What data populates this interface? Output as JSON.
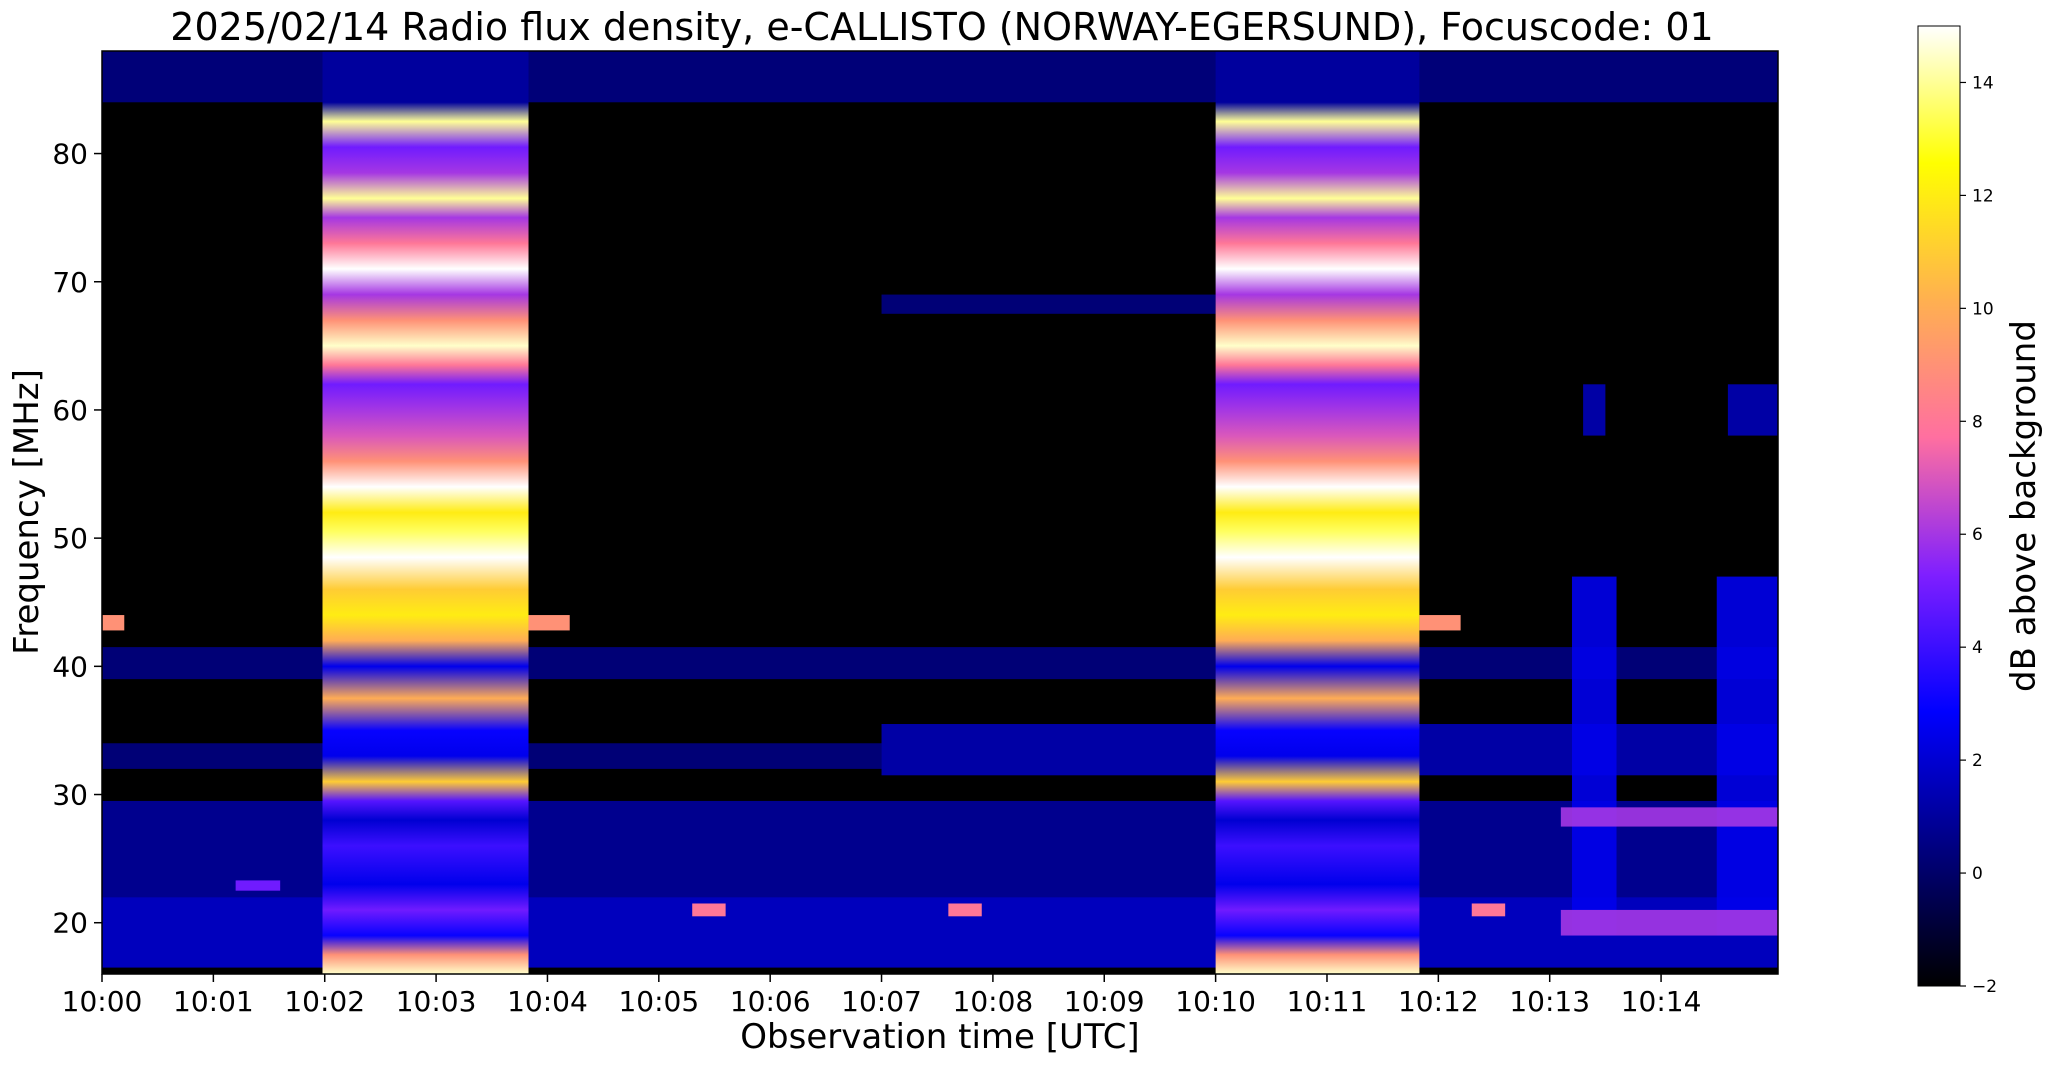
{
  "chart_data": {
    "type": "heatmap",
    "title": "2025/02/14  Radio flux density, e-CALLISTO (NORWAY-EGERSUND), Focuscode: 01",
    "xlabel": "Observation time [UTC]",
    "ylabel": "Frequency [MHz]",
    "x_range_minutes": [
      0,
      15.05
    ],
    "ylim": [
      16,
      88
    ],
    "x_ticks": [
      {
        "minute": 0,
        "label": "10:00"
      },
      {
        "minute": 1,
        "label": "10:01"
      },
      {
        "minute": 2,
        "label": "10:02"
      },
      {
        "minute": 3,
        "label": "10:03"
      },
      {
        "minute": 4,
        "label": "10:04"
      },
      {
        "minute": 5,
        "label": "10:05"
      },
      {
        "minute": 6,
        "label": "10:06"
      },
      {
        "minute": 7,
        "label": "10:07"
      },
      {
        "minute": 8,
        "label": "10:08"
      },
      {
        "minute": 9,
        "label": "10:09"
      },
      {
        "minute": 10,
        "label": "10:10"
      },
      {
        "minute": 11,
        "label": "10:11"
      },
      {
        "minute": 12,
        "label": "10:12"
      },
      {
        "minute": 13,
        "label": "10:13"
      },
      {
        "minute": 14,
        "label": "10:14"
      }
    ],
    "y_ticks": [
      20,
      30,
      40,
      50,
      60,
      70,
      80
    ],
    "colorbar": {
      "label": "dB above background",
      "range": [
        -2,
        15
      ],
      "ticks": [
        -2,
        0,
        2,
        4,
        6,
        8,
        10,
        12,
        14
      ],
      "colormap": "gnuplot2",
      "stops": [
        "#000000",
        "#00007f",
        "#0000ff",
        "#7f1fff",
        "#ff6fa0",
        "#ffb050",
        "#ffff00",
        "#ffffff"
      ]
    },
    "background_db": -2,
    "top_band": {
      "freq_range": [
        84,
        88
      ],
      "db": 0.3
    },
    "calibration_bursts": [
      {
        "start_min": 1.98,
        "end_min": 3.83,
        "freq_range": [
          16,
          88
        ]
      },
      {
        "start_min": 10.0,
        "end_min": 11.83,
        "freq_range": [
          16,
          88
        ]
      }
    ],
    "burst_spectrum": [
      {
        "freq": 16,
        "db": 14.5
      },
      {
        "freq": 17.5,
        "db": 9
      },
      {
        "freq": 19,
        "db": 3
      },
      {
        "freq": 21,
        "db": 5
      },
      {
        "freq": 23,
        "db": 2.5
      },
      {
        "freq": 26,
        "db": 4
      },
      {
        "freq": 28,
        "db": 2
      },
      {
        "freq": 29.5,
        "db": 4.5
      },
      {
        "freq": 31,
        "db": 11
      },
      {
        "freq": 33,
        "db": 2.5
      },
      {
        "freq": 35,
        "db": 3
      },
      {
        "freq": 37.5,
        "db": 10
      },
      {
        "freq": 40,
        "db": 2.5
      },
      {
        "freq": 42,
        "db": 10
      },
      {
        "freq": 44,
        "db": 12
      },
      {
        "freq": 46,
        "db": 11
      },
      {
        "freq": 48.5,
        "db": 15
      },
      {
        "freq": 50.5,
        "db": 13.5
      },
      {
        "freq": 52,
        "db": 12
      },
      {
        "freq": 54,
        "db": 15
      },
      {
        "freq": 56,
        "db": 9
      },
      {
        "freq": 58,
        "db": 7
      },
      {
        "freq": 60,
        "db": 6
      },
      {
        "freq": 62,
        "db": 5
      },
      {
        "freq": 63.5,
        "db": 8
      },
      {
        "freq": 65,
        "db": 14.5
      },
      {
        "freq": 67,
        "db": 9
      },
      {
        "freq": 69,
        "db": 6
      },
      {
        "freq": 71,
        "db": 15
      },
      {
        "freq": 73,
        "db": 8
      },
      {
        "freq": 75,
        "db": 6
      },
      {
        "freq": 76.5,
        "db": 14
      },
      {
        "freq": 78.5,
        "db": 6
      },
      {
        "freq": 80.5,
        "db": 5
      },
      {
        "freq": 82.5,
        "db": 14
      },
      {
        "freq": 84,
        "db": 1
      },
      {
        "freq": 88,
        "db": 1
      }
    ],
    "quiet_features": [
      {
        "start_min": 0,
        "end_min": 15.05,
        "freq_range": [
          16.5,
          22
        ],
        "db": 2
      },
      {
        "start_min": 0,
        "end_min": 15.05,
        "freq_range": [
          22,
          29.5
        ],
        "db": 1
      },
      {
        "start_min": 0,
        "end_min": 7,
        "freq_range": [
          32,
          34
        ],
        "db": 0.5
      },
      {
        "start_min": 7,
        "end_min": 15.05,
        "freq_range": [
          31.5,
          35.5
        ],
        "db": 1.5
      },
      {
        "start_min": 0,
        "end_min": 15.05,
        "freq_range": [
          39,
          41.5
        ],
        "db": 0.5
      },
      {
        "start_min": 7,
        "end_min": 10,
        "freq_range": [
          67.5,
          69
        ],
        "db": 0.5
      },
      {
        "start_min": 13.2,
        "end_min": 13.6,
        "freq_range": [
          19,
          47
        ],
        "db": 2.5
      },
      {
        "start_min": 14.5,
        "end_min": 15.05,
        "freq_range": [
          19,
          47
        ],
        "db": 2.5
      },
      {
        "start_min": 13.3,
        "end_min": 13.5,
        "freq_range": [
          58,
          62
        ],
        "db": 1.5
      },
      {
        "start_min": 14.6,
        "end_min": 15.05,
        "freq_range": [
          58,
          62
        ],
        "db": 1.5
      },
      {
        "start_min": 13.1,
        "end_min": 15.05,
        "freq_range": [
          27.5,
          29
        ],
        "db": 6
      },
      {
        "start_min": 13.1,
        "end_min": 15.05,
        "freq_range": [
          19,
          21
        ],
        "db": 6
      }
    ],
    "spots": [
      {
        "start_min": 0,
        "end_min": 0.2,
        "freq_range": [
          42.8,
          44
        ],
        "db": 9
      },
      {
        "start_min": 3.83,
        "end_min": 4.2,
        "freq_range": [
          42.8,
          44
        ],
        "db": 9
      },
      {
        "start_min": 11.83,
        "end_min": 12.2,
        "freq_range": [
          42.8,
          44
        ],
        "db": 9
      },
      {
        "start_min": 5.3,
        "end_min": 5.6,
        "freq_range": [
          20.5,
          21.5
        ],
        "db": 8
      },
      {
        "start_min": 7.6,
        "end_min": 7.9,
        "freq_range": [
          20.5,
          21.5
        ],
        "db": 8
      },
      {
        "start_min": 12.3,
        "end_min": 12.6,
        "freq_range": [
          20.5,
          21.5
        ],
        "db": 8
      },
      {
        "start_min": 1.2,
        "end_min": 1.6,
        "freq_range": [
          22.5,
          23.3
        ],
        "db": 5
      }
    ]
  }
}
